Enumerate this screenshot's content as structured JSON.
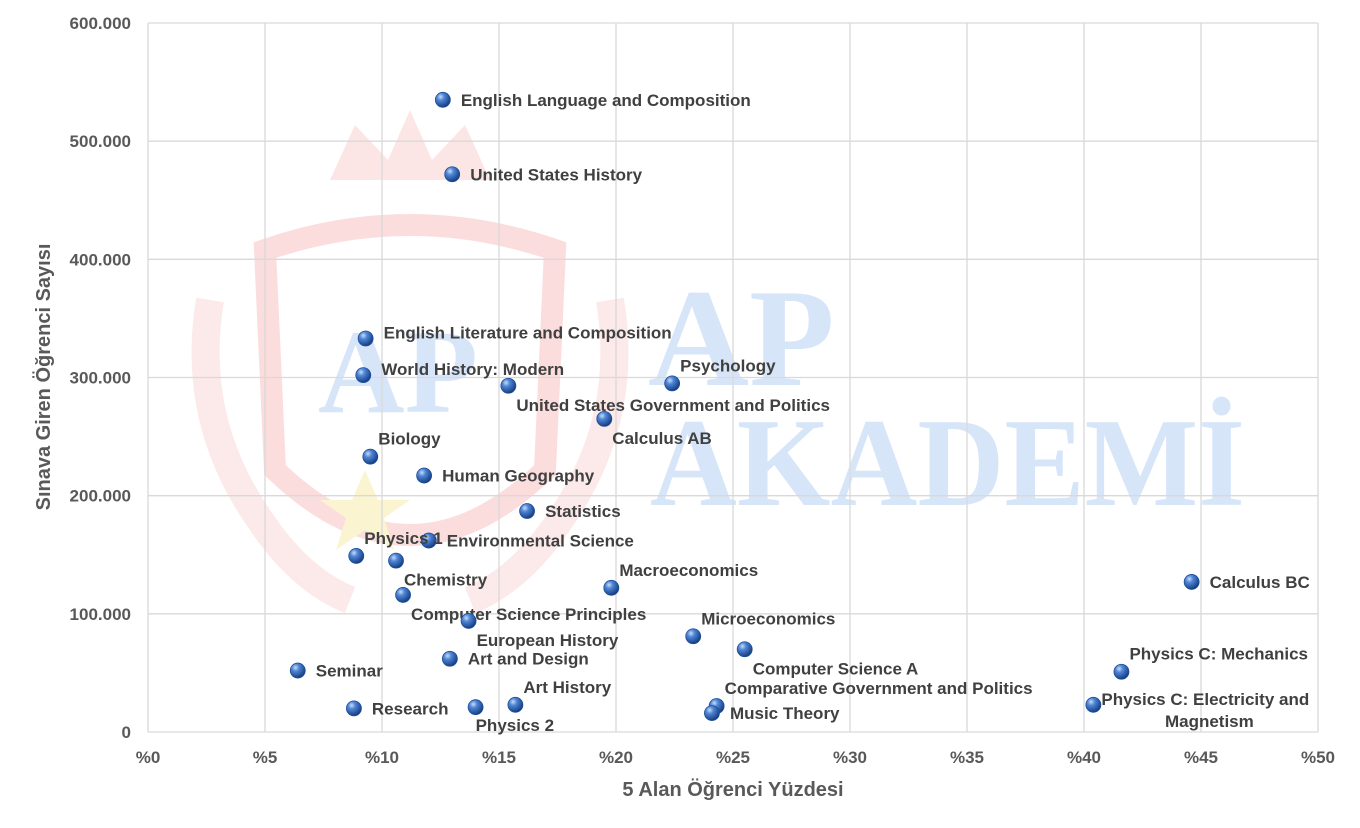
{
  "watermark": {
    "line1": "AP",
    "line2": "AKADEMİ"
  },
  "chart_data": {
    "type": "scatter",
    "xlabel": "5 Alan Öğrenci Yüzdesi",
    "ylabel": "Sınava Giren Öğrenci Sayısı",
    "xlim": [
      0,
      50
    ],
    "ylim": [
      0,
      600000
    ],
    "x_ticks": [
      0,
      5,
      10,
      15,
      20,
      25,
      30,
      35,
      40,
      45,
      50
    ],
    "x_tick_labels": [
      "%0",
      "%5",
      "%10",
      "%15",
      "%20",
      "%25",
      "%30",
      "%35",
      "%40",
      "%45",
      "%50"
    ],
    "y_ticks": [
      0,
      100000,
      200000,
      300000,
      400000,
      500000,
      600000
    ],
    "y_tick_labels": [
      "0",
      "100.000",
      "200.000",
      "300.000",
      "400.000",
      "500.000",
      "600.000"
    ],
    "grid": true,
    "legend": "none",
    "marker_color": "#2e64b8",
    "points": [
      {
        "name": "English Language and Composition",
        "x": 12.6,
        "y": 535000,
        "pos": "right"
      },
      {
        "name": "United States History",
        "x": 13.0,
        "y": 472000,
        "pos": "right"
      },
      {
        "name": "English Literature and Composition",
        "x": 9.3,
        "y": 333000,
        "pos": "right-up"
      },
      {
        "name": "World History: Modern",
        "x": 9.2,
        "y": 302000,
        "pos": "right-up"
      },
      {
        "name": "United States Government and Politics",
        "x": 15.4,
        "y": 293000,
        "pos": "below-right"
      },
      {
        "name": "Psychology",
        "x": 22.4,
        "y": 295000,
        "pos": "above-right"
      },
      {
        "name": "Calculus AB",
        "x": 19.5,
        "y": 265000,
        "pos": "below-right"
      },
      {
        "name": "Biology",
        "x": 9.5,
        "y": 233000,
        "pos": "above-right"
      },
      {
        "name": "Human Geography",
        "x": 11.8,
        "y": 217000,
        "pos": "right"
      },
      {
        "name": "Statistics",
        "x": 16.2,
        "y": 187000,
        "pos": "right"
      },
      {
        "name": "Environmental Science",
        "x": 12.0,
        "y": 162000,
        "pos": "right"
      },
      {
        "name": "Physics 1",
        "x": 8.9,
        "y": 149000,
        "pos": "above-right"
      },
      {
        "name": "Chemistry",
        "x": 10.6,
        "y": 145000,
        "pos": "below-right"
      },
      {
        "name": "Macroeconomics",
        "x": 19.8,
        "y": 122000,
        "pos": "above-right"
      },
      {
        "name": "Calculus BC",
        "x": 44.6,
        "y": 127000,
        "pos": "right"
      },
      {
        "name": "Computer Science Principles",
        "x": 10.9,
        "y": 116000,
        "pos": "below-right"
      },
      {
        "name": "European History",
        "x": 13.7,
        "y": 94000,
        "pos": "below-right"
      },
      {
        "name": "Microeconomics",
        "x": 23.3,
        "y": 81000,
        "pos": "above-right"
      },
      {
        "name": "Computer Science A",
        "x": 25.5,
        "y": 70000,
        "pos": "below-right"
      },
      {
        "name": "Art and Design",
        "x": 12.9,
        "y": 62000,
        "pos": "right"
      },
      {
        "name": "Seminar",
        "x": 6.4,
        "y": 52000,
        "pos": "right"
      },
      {
        "name": "Physics C: Mechanics",
        "x": 41.6,
        "y": 51000,
        "pos": "above-right"
      },
      {
        "name": "Art History",
        "x": 15.7,
        "y": 23000,
        "pos": "above-right"
      },
      {
        "name": "Comparative Government and Politics",
        "x": 24.3,
        "y": 22000,
        "pos": "above-right"
      },
      {
        "name": "Physics C: Electricity and Magnetism",
        "x": 40.4,
        "y": 23000,
        "pos": "right-2line"
      },
      {
        "name": "Research",
        "x": 8.8,
        "y": 20000,
        "pos": "right"
      },
      {
        "name": "Physics 2",
        "x": 14.0,
        "y": 21000,
        "pos": "below"
      },
      {
        "name": "Music Theory",
        "x": 24.1,
        "y": 16000,
        "pos": "right"
      }
    ]
  }
}
